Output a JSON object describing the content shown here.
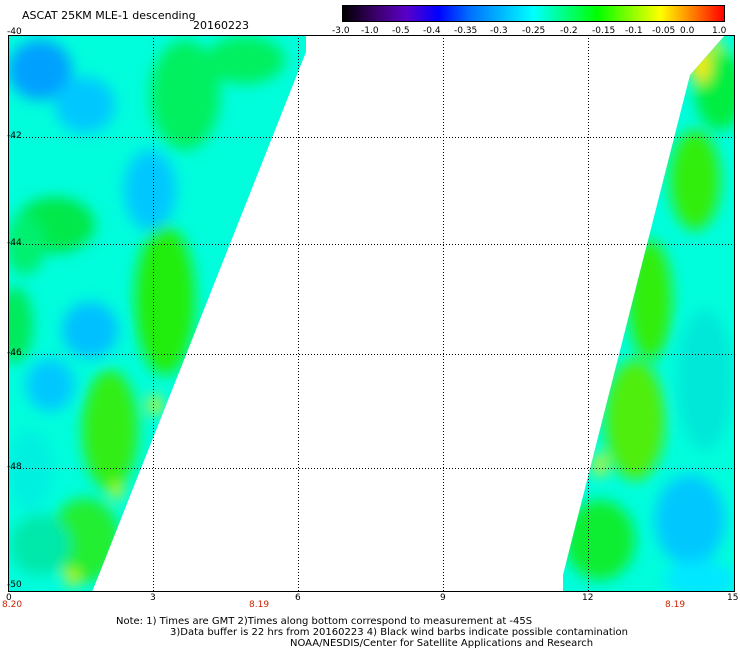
{
  "header": {
    "title": "ASCAT 25KM MLE-1 descending",
    "date": "20160223"
  },
  "colorbar": {
    "labels": [
      "-3.0",
      "-1.0",
      "-0.5",
      "-0.4",
      "-0.35",
      "-0.3",
      "-0.25",
      "-0.2",
      "-0.15",
      "-0.1",
      "-0.05",
      "0.0",
      "1.0"
    ],
    "colors": [
      "#000000",
      "#3a0066",
      "#5a00c8",
      "#0000ff",
      "#0070ff",
      "#00b8ff",
      "#00ffff",
      "#00ff80",
      "#00ff00",
      "#80ff00",
      "#ffff00",
      "#ff8000",
      "#ff0000"
    ]
  },
  "axes": {
    "y_ticks": [
      "-40",
      "-42",
      "-44",
      "-46",
      "-48",
      "-50"
    ],
    "x_ticks": [
      "0",
      "3",
      "6",
      "9",
      "12",
      "15"
    ],
    "time_labels": [
      "8.20",
      "8.19",
      "8.19"
    ]
  },
  "notes": {
    "line1": "Note: 1) Times are GMT 2)Times along bottom correspond to measurement at -45S",
    "line2": "3)Data buffer is 22 hrs from 20160223 4) Black wind barbs indicate possible contamination",
    "line3": "NOAA/NESDIS/Center for Satellite Applications and Research"
  }
}
